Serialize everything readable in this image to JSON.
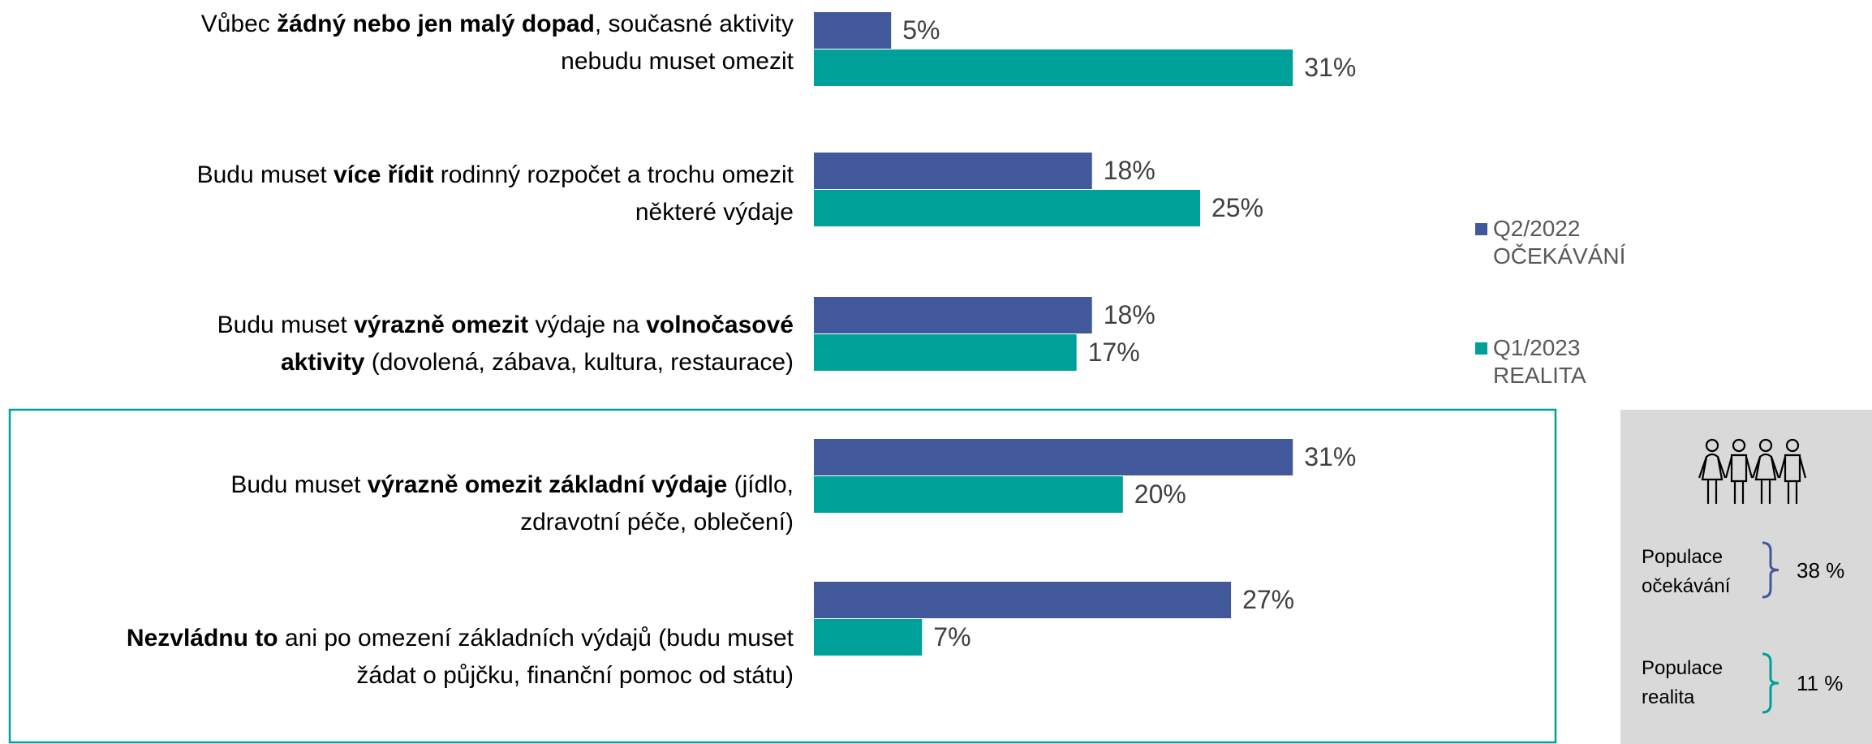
{
  "chart_data": {
    "type": "bar",
    "orientation": "horizontal",
    "categories": [
      [
        [
          {
            "t": "Vůbec "
          },
          {
            "t": "žádný nebo jen malý dopad",
            "b": true
          },
          {
            "t": ", současné aktivity"
          }
        ],
        [
          {
            "t": "nebudu muset omezit"
          }
        ]
      ],
      [
        [
          {
            "t": "Budu muset "
          },
          {
            "t": "více řídit",
            "b": true
          },
          {
            "t": " rodinný rozpočet a trochu omezit"
          }
        ],
        [
          {
            "t": "některé výdaje"
          }
        ]
      ],
      [
        [
          {
            "t": "Budu muset "
          },
          {
            "t": "výrazně omezit",
            "b": true
          },
          {
            "t": " výdaje na "
          },
          {
            "t": "volnočasové",
            "b": true
          }
        ],
        [
          {
            "t": "aktivity",
            "b": true
          },
          {
            "t": " (dovolená, zábava, kultura, restaurace)"
          }
        ]
      ],
      [
        [
          {
            "t": "Budu muset "
          },
          {
            "t": "výrazně omezit základní výdaje",
            "b": true
          },
          {
            "t": " (jídlo,"
          }
        ],
        [
          {
            "t": "zdravotní péče, oblečení)"
          }
        ]
      ],
      [
        [
          {
            "t": "Nezvládnu to",
            "b": true
          },
          {
            "t": " ani po omezení základních výdajů (budu muset"
          }
        ],
        [
          {
            "t": "žádat o půjčku, finanční pomoc od státu)"
          }
        ]
      ]
    ],
    "series": [
      {
        "name": "Q2/2022 OČEKÁVÁNÍ",
        "color": "#41589b",
        "values": [
          5,
          18,
          18,
          31,
          27
        ],
        "value_labels": [
          "5%",
          "18%",
          "18%",
          "31%",
          "27%"
        ]
      },
      {
        "name": "Q1/2023 REALITA",
        "color": "#00a09a",
        "values": [
          31,
          25,
          17,
          20,
          7
        ],
        "value_labels": [
          "31%",
          "25%",
          "17%",
          "20%",
          "7%"
        ]
      }
    ],
    "side_panel": [
      {
        "label": "Populace očekávání",
        "value_label": "38 %",
        "color": "#41589b"
      },
      {
        "label": "Populace realita",
        "value_label": "11 %",
        "color": "#00a09a"
      }
    ]
  }
}
